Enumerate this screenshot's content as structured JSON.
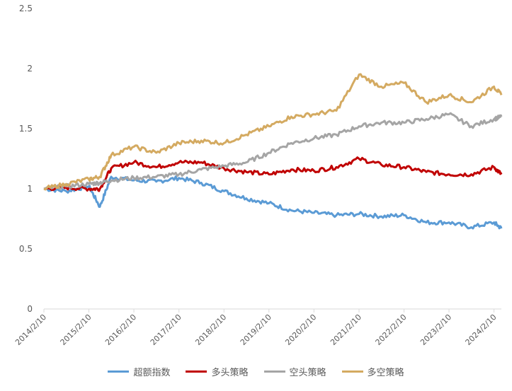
{
  "chart_data": {
    "type": "line",
    "title": "",
    "xlabel": "",
    "ylabel": "",
    "ylim": [
      0,
      2.5
    ],
    "yticks": [
      "0",
      "0.5",
      "1",
      "1.5",
      "2",
      "2.5"
    ],
    "xticks": [
      "2014/2/10",
      "2015/2/10",
      "2016/2/10",
      "2017/2/10",
      "2018/2/10",
      "2019/2/10",
      "2020/2/10",
      "2021/2/10",
      "2022/2/10",
      "2023/2/10",
      "2024/2/10"
    ],
    "grid": false,
    "legend_position": "bottom",
    "x": [
      "2014/2/10",
      "2014/8/10",
      "2015/2/10",
      "2015/5/10",
      "2015/8/10",
      "2016/2/10",
      "2016/8/10",
      "2017/2/10",
      "2017/8/10",
      "2018/2/10",
      "2018/8/10",
      "2019/2/10",
      "2019/8/10",
      "2020/2/10",
      "2020/8/10",
      "2021/2/10",
      "2021/8/10",
      "2022/2/10",
      "2022/8/10",
      "2023/2/10",
      "2023/8/10",
      "2024/2/10",
      "2024/4/10"
    ],
    "series": [
      {
        "name": "超额指数",
        "color": "#5b9bd5",
        "values": [
          1.0,
          0.98,
          1.02,
          0.85,
          1.1,
          1.07,
          1.06,
          1.09,
          1.05,
          0.98,
          0.92,
          0.88,
          0.82,
          0.8,
          0.78,
          0.79,
          0.77,
          0.78,
          0.72,
          0.72,
          0.68,
          0.72,
          0.67
        ]
      },
      {
        "name": "多头策略",
        "color": "#c00000",
        "values": [
          1.0,
          1.01,
          1.0,
          1.0,
          1.17,
          1.22,
          1.18,
          1.22,
          1.22,
          1.17,
          1.14,
          1.12,
          1.16,
          1.15,
          1.18,
          1.25,
          1.2,
          1.18,
          1.14,
          1.12,
          1.12,
          1.18,
          1.12
        ]
      },
      {
        "name": "空头策略",
        "color": "#a5a5a5",
        "values": [
          1.0,
          1.02,
          1.04,
          1.05,
          1.07,
          1.09,
          1.1,
          1.12,
          1.16,
          1.19,
          1.22,
          1.3,
          1.38,
          1.42,
          1.45,
          1.52,
          1.55,
          1.55,
          1.58,
          1.62,
          1.52,
          1.58,
          1.6
        ]
      },
      {
        "name": "多空策略",
        "color": "#d4aa61",
        "values": [
          1.0,
          1.04,
          1.08,
          1.1,
          1.28,
          1.35,
          1.3,
          1.38,
          1.4,
          1.38,
          1.45,
          1.52,
          1.6,
          1.62,
          1.65,
          1.95,
          1.85,
          1.88,
          1.72,
          1.78,
          1.72,
          1.85,
          1.78
        ]
      }
    ]
  }
}
